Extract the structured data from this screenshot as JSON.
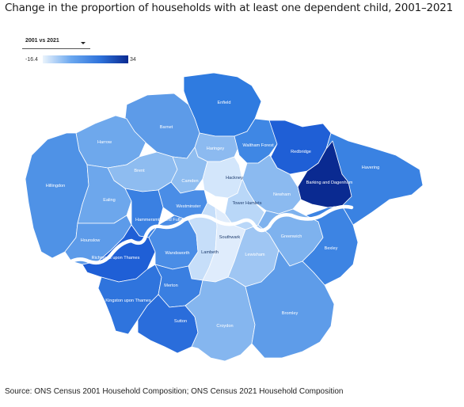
{
  "title": "Change in the proportion of households with at least one dependent child, 2001–2021",
  "source": "Source: ONS Census 2001 Household Composition; ONS Census 2021 Household Composition",
  "selector": {
    "value": "2001 vs 2021"
  },
  "legend": {
    "min": "-16.4",
    "max": "34",
    "color_low": "#eaf3fc",
    "color_high": "#0a2a91"
  },
  "river": {
    "name": "River Thames",
    "color": "#ffffff"
  },
  "boroughs": [
    {
      "name": "Enfield",
      "fill": "#2f7be0"
    },
    {
      "name": "Barnet",
      "fill": "#5d9be8"
    },
    {
      "name": "Harrow",
      "fill": "#6ea8ec"
    },
    {
      "name": "Haringey",
      "fill": "#8cbaf0"
    },
    {
      "name": "Waltham Forest",
      "fill": "#3f87e4"
    },
    {
      "name": "Redbridge",
      "fill": "#1f5fd6"
    },
    {
      "name": "Havering",
      "fill": "#3a82e2"
    },
    {
      "name": "Brent",
      "fill": "#8ebcf0"
    },
    {
      "name": "Hillingdon",
      "fill": "#4f92e6"
    },
    {
      "name": "Ealing",
      "fill": "#6da7ec"
    },
    {
      "name": "Camden",
      "fill": "#8fbdf0"
    },
    {
      "name": "Hackney",
      "fill": "#d3e6fb"
    },
    {
      "name": "Barking and Dagenham",
      "fill": "#0a2a91"
    },
    {
      "name": "Newham",
      "fill": "#8bbaf0"
    },
    {
      "name": "Tower Hamlets",
      "fill": "#b9d7f8"
    },
    {
      "name": "Westminster",
      "fill": "#4a8de6"
    },
    {
      "name": "Hammersmith and Fulham",
      "fill": "#3a80e2"
    },
    {
      "name": "Hounslow",
      "fill": "#5d9be9"
    },
    {
      "name": "Richmond upon Thames",
      "fill": "#1f5fd6"
    },
    {
      "name": "Wandsworth",
      "fill": "#4a8de6"
    },
    {
      "name": "Lambeth",
      "fill": "#c6def9"
    },
    {
      "name": "Southwark",
      "fill": "#dfecfc"
    },
    {
      "name": "Lewisham",
      "fill": "#9fc6f3"
    },
    {
      "name": "Greenwich",
      "fill": "#7eb2ee"
    },
    {
      "name": "Bexley",
      "fill": "#3d84e3"
    },
    {
      "name": "Kingston upon Thames",
      "fill": "#2f74dd"
    },
    {
      "name": "Merton",
      "fill": "#3a7fe1"
    },
    {
      "name": "Sutton",
      "fill": "#2a6ddb"
    },
    {
      "name": "Croydon",
      "fill": "#85b6ef"
    },
    {
      "name": "Bromley",
      "fill": "#5e9ce9"
    }
  ]
}
